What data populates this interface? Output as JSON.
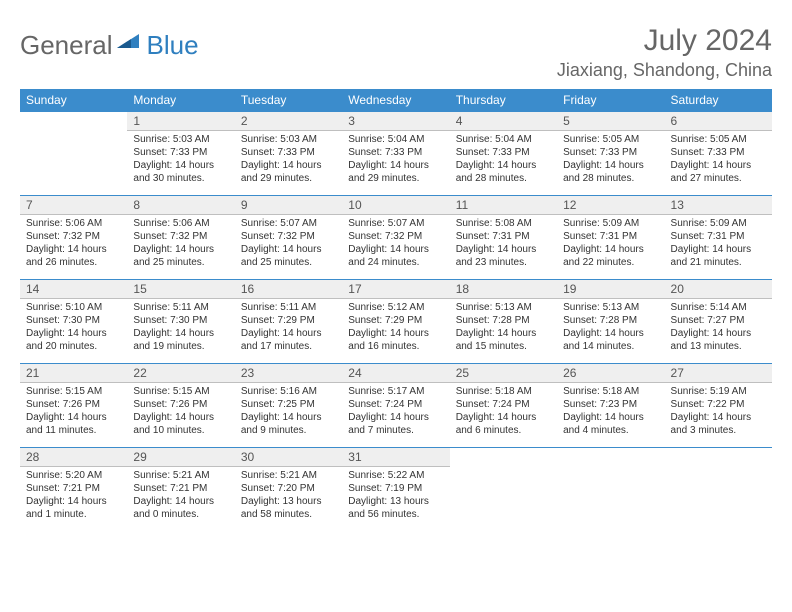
{
  "logo": {
    "part1": "General",
    "part2": "Blue"
  },
  "title": "July 2024",
  "location": "Jiaxiang, Shandong, China",
  "colors": {
    "header_bg": "#3b8ccc",
    "header_text": "#ffffff",
    "daynum_bg": "#efefef",
    "page_bg": "#ffffff",
    "text_gray": "#666666"
  },
  "weekdays": [
    "Sunday",
    "Monday",
    "Tuesday",
    "Wednesday",
    "Thursday",
    "Friday",
    "Saturday"
  ],
  "weeks": [
    [
      {
        "n": "",
        "rise": "",
        "set": "",
        "day": ""
      },
      {
        "n": "1",
        "rise": "Sunrise: 5:03 AM",
        "set": "Sunset: 7:33 PM",
        "day": "Daylight: 14 hours and 30 minutes."
      },
      {
        "n": "2",
        "rise": "Sunrise: 5:03 AM",
        "set": "Sunset: 7:33 PM",
        "day": "Daylight: 14 hours and 29 minutes."
      },
      {
        "n": "3",
        "rise": "Sunrise: 5:04 AM",
        "set": "Sunset: 7:33 PM",
        "day": "Daylight: 14 hours and 29 minutes."
      },
      {
        "n": "4",
        "rise": "Sunrise: 5:04 AM",
        "set": "Sunset: 7:33 PM",
        "day": "Daylight: 14 hours and 28 minutes."
      },
      {
        "n": "5",
        "rise": "Sunrise: 5:05 AM",
        "set": "Sunset: 7:33 PM",
        "day": "Daylight: 14 hours and 28 minutes."
      },
      {
        "n": "6",
        "rise": "Sunrise: 5:05 AM",
        "set": "Sunset: 7:33 PM",
        "day": "Daylight: 14 hours and 27 minutes."
      }
    ],
    [
      {
        "n": "7",
        "rise": "Sunrise: 5:06 AM",
        "set": "Sunset: 7:32 PM",
        "day": "Daylight: 14 hours and 26 minutes."
      },
      {
        "n": "8",
        "rise": "Sunrise: 5:06 AM",
        "set": "Sunset: 7:32 PM",
        "day": "Daylight: 14 hours and 25 minutes."
      },
      {
        "n": "9",
        "rise": "Sunrise: 5:07 AM",
        "set": "Sunset: 7:32 PM",
        "day": "Daylight: 14 hours and 25 minutes."
      },
      {
        "n": "10",
        "rise": "Sunrise: 5:07 AM",
        "set": "Sunset: 7:32 PM",
        "day": "Daylight: 14 hours and 24 minutes."
      },
      {
        "n": "11",
        "rise": "Sunrise: 5:08 AM",
        "set": "Sunset: 7:31 PM",
        "day": "Daylight: 14 hours and 23 minutes."
      },
      {
        "n": "12",
        "rise": "Sunrise: 5:09 AM",
        "set": "Sunset: 7:31 PM",
        "day": "Daylight: 14 hours and 22 minutes."
      },
      {
        "n": "13",
        "rise": "Sunrise: 5:09 AM",
        "set": "Sunset: 7:31 PM",
        "day": "Daylight: 14 hours and 21 minutes."
      }
    ],
    [
      {
        "n": "14",
        "rise": "Sunrise: 5:10 AM",
        "set": "Sunset: 7:30 PM",
        "day": "Daylight: 14 hours and 20 minutes."
      },
      {
        "n": "15",
        "rise": "Sunrise: 5:11 AM",
        "set": "Sunset: 7:30 PM",
        "day": "Daylight: 14 hours and 19 minutes."
      },
      {
        "n": "16",
        "rise": "Sunrise: 5:11 AM",
        "set": "Sunset: 7:29 PM",
        "day": "Daylight: 14 hours and 17 minutes."
      },
      {
        "n": "17",
        "rise": "Sunrise: 5:12 AM",
        "set": "Sunset: 7:29 PM",
        "day": "Daylight: 14 hours and 16 minutes."
      },
      {
        "n": "18",
        "rise": "Sunrise: 5:13 AM",
        "set": "Sunset: 7:28 PM",
        "day": "Daylight: 14 hours and 15 minutes."
      },
      {
        "n": "19",
        "rise": "Sunrise: 5:13 AM",
        "set": "Sunset: 7:28 PM",
        "day": "Daylight: 14 hours and 14 minutes."
      },
      {
        "n": "20",
        "rise": "Sunrise: 5:14 AM",
        "set": "Sunset: 7:27 PM",
        "day": "Daylight: 14 hours and 13 minutes."
      }
    ],
    [
      {
        "n": "21",
        "rise": "Sunrise: 5:15 AM",
        "set": "Sunset: 7:26 PM",
        "day": "Daylight: 14 hours and 11 minutes."
      },
      {
        "n": "22",
        "rise": "Sunrise: 5:15 AM",
        "set": "Sunset: 7:26 PM",
        "day": "Daylight: 14 hours and 10 minutes."
      },
      {
        "n": "23",
        "rise": "Sunrise: 5:16 AM",
        "set": "Sunset: 7:25 PM",
        "day": "Daylight: 14 hours and 9 minutes."
      },
      {
        "n": "24",
        "rise": "Sunrise: 5:17 AM",
        "set": "Sunset: 7:24 PM",
        "day": "Daylight: 14 hours and 7 minutes."
      },
      {
        "n": "25",
        "rise": "Sunrise: 5:18 AM",
        "set": "Sunset: 7:24 PM",
        "day": "Daylight: 14 hours and 6 minutes."
      },
      {
        "n": "26",
        "rise": "Sunrise: 5:18 AM",
        "set": "Sunset: 7:23 PM",
        "day": "Daylight: 14 hours and 4 minutes."
      },
      {
        "n": "27",
        "rise": "Sunrise: 5:19 AM",
        "set": "Sunset: 7:22 PM",
        "day": "Daylight: 14 hours and 3 minutes."
      }
    ],
    [
      {
        "n": "28",
        "rise": "Sunrise: 5:20 AM",
        "set": "Sunset: 7:21 PM",
        "day": "Daylight: 14 hours and 1 minute."
      },
      {
        "n": "29",
        "rise": "Sunrise: 5:21 AM",
        "set": "Sunset: 7:21 PM",
        "day": "Daylight: 14 hours and 0 minutes."
      },
      {
        "n": "30",
        "rise": "Sunrise: 5:21 AM",
        "set": "Sunset: 7:20 PM",
        "day": "Daylight: 13 hours and 58 minutes."
      },
      {
        "n": "31",
        "rise": "Sunrise: 5:22 AM",
        "set": "Sunset: 7:19 PM",
        "day": "Daylight: 13 hours and 56 minutes."
      },
      {
        "n": "",
        "rise": "",
        "set": "",
        "day": ""
      },
      {
        "n": "",
        "rise": "",
        "set": "",
        "day": ""
      },
      {
        "n": "",
        "rise": "",
        "set": "",
        "day": ""
      }
    ]
  ]
}
